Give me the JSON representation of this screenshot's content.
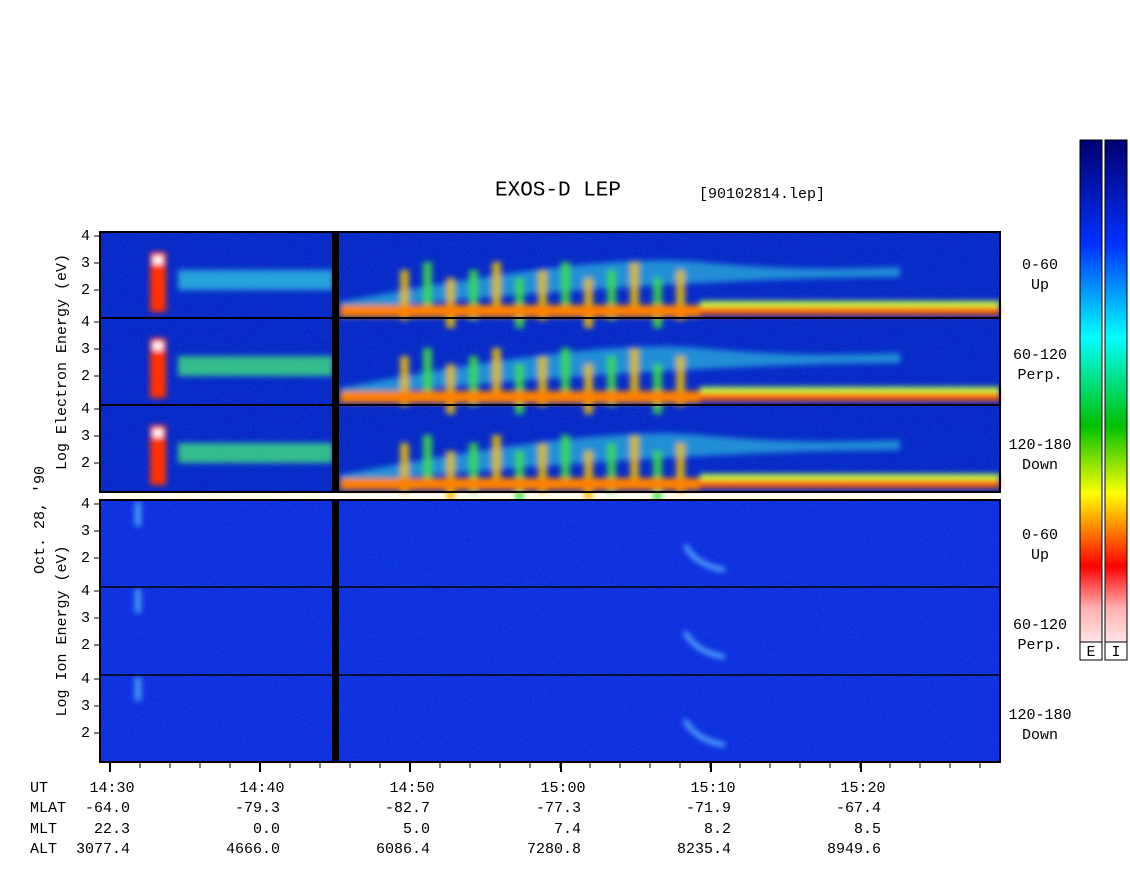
{
  "title": "EXOS-D LEP",
  "file": "[90102814.lep]",
  "date": "Oct. 28, '90",
  "color_bar_labels": [
    "E",
    "I"
  ],
  "species": [
    {
      "label": "Log  Electron  Energy  (eV)",
      "panels": [
        {
          "pitch": "0-60",
          "direction": "Up",
          "yticks": [
            2,
            3,
            4
          ]
        },
        {
          "pitch": "60-120",
          "direction": "Perp.",
          "yticks": [
            2,
            3,
            4
          ]
        },
        {
          "pitch": "120-180",
          "direction": "Down",
          "yticks": [
            2,
            3,
            4
          ]
        }
      ]
    },
    {
      "label": "Log  Ion  Energy  (eV)",
      "panels": [
        {
          "pitch": "0-60",
          "direction": "Up",
          "yticks": [
            2,
            3,
            4
          ]
        },
        {
          "pitch": "60-120",
          "direction": "Perp.",
          "yticks": [
            2,
            3,
            4
          ]
        },
        {
          "pitch": "120-180",
          "direction": "Down",
          "yticks": [
            2,
            3,
            4
          ]
        }
      ]
    }
  ],
  "rows": [
    {
      "label": "UT",
      "values": [
        "14:30",
        "14:40",
        "14:50",
        "15:00",
        "15:10",
        "15:20"
      ]
    },
    {
      "label": "MLAT",
      "values": [
        "-64.0",
        "-79.3",
        "-82.7",
        "-77.3",
        "-71.9",
        "-67.4"
      ]
    },
    {
      "label": "MLT",
      "values": [
        "22.3",
        "0.0",
        "5.0",
        "7.4",
        "8.2",
        "8.5"
      ]
    },
    {
      "label": "ALT",
      "values": [
        "3077.4",
        "4666.0",
        "6086.4",
        "7280.8",
        "8235.4",
        "8949.6"
      ]
    }
  ]
}
